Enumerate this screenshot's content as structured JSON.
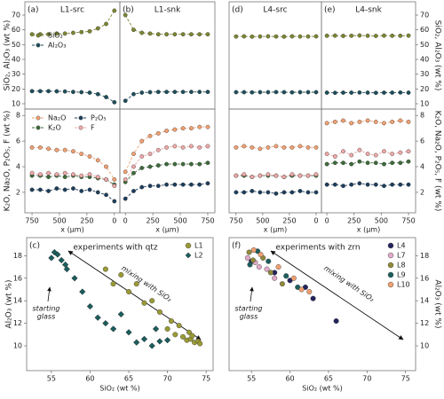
{
  "chart_data": [
    {
      "type": "line",
      "panel": "(a)",
      "title": "L1-src",
      "x": [
        750,
        675,
        600,
        525,
        450,
        375,
        300,
        225,
        150,
        75,
        0
      ],
      "xlim": [
        815,
        -50
      ],
      "xticks": [
        750,
        500,
        250,
        0
      ],
      "xlabel": "x (μm)",
      "legend": true,
      "upper": {
        "ylabel": "SiO₂, Al₂O₃ (wt %)",
        "ylim": [
          6.4,
          79
        ],
        "yticks": [
          10,
          20,
          30,
          40,
          50,
          60,
          70
        ],
        "yside": "left",
        "series": [
          {
            "name": "SiO₂",
            "color": "#7d8530",
            "values": [
              57,
              57,
              57,
              57.5,
              57.5,
              58,
              58.5,
              59,
              61,
              64,
              73
            ]
          },
          {
            "name": "Al₂O₃",
            "color": "#1d4e5c",
            "values": [
              18.5,
              18.5,
              18.5,
              18.4,
              18.3,
              18,
              17.8,
              17.5,
              16.5,
              14.5,
              11
            ]
          }
        ]
      },
      "lower": {
        "ylabel": "K₂O, Na₂O, P₂O₅, F (wt %)",
        "ylim": [
          0.4,
          8.5
        ],
        "yticks": [
          2,
          4,
          6,
          8
        ],
        "yside": "left",
        "series": [
          {
            "name": "Na₂O",
            "color": "#f4a070",
            "values": [
              5.5,
              5.5,
              5.4,
              5.3,
              5.3,
              5.2,
              5.0,
              4.8,
              4.5,
              4.0,
              3.0
            ]
          },
          {
            "name": "K₂O",
            "color": "#3d6b3a",
            "values": [
              3.3,
              3.3,
              3.2,
              3.3,
              3.2,
              3.3,
              3.2,
              3.2,
              3.1,
              3.0,
              2.6
            ]
          },
          {
            "name": "P₂O₅",
            "color": "#1b3d5c",
            "values": [
              2.2,
              2.2,
              2.1,
              2.3,
              2.2,
              2.3,
              2.1,
              2.2,
              2.0,
              1.8,
              1.3
            ]
          },
          {
            "name": "F",
            "color": "#f0a8a8",
            "values": [
              3.5,
              3.4,
              3.5,
              3.4,
              3.5,
              3.4,
              3.3,
              3.4,
              3.2,
              3.0,
              2.5
            ]
          }
        ]
      }
    },
    {
      "type": "line",
      "panel": "(b)",
      "title": "L1-snk",
      "x": [
        0,
        75,
        150,
        225,
        300,
        375,
        450,
        525,
        600,
        675,
        750
      ],
      "xlim": [
        -50,
        815
      ],
      "xticks": [
        0,
        250,
        500,
        750
      ],
      "xlabel": "x (μm)",
      "upper": {
        "ylim": [
          6.4,
          79
        ],
        "series": [
          {
            "name": "SiO₂",
            "color": "#7d8530",
            "values": [
              70,
              60,
              58,
              57.5,
              57,
              57,
              57,
              57,
              57,
              57,
              57
            ]
          },
          {
            "name": "Al₂O₃",
            "color": "#1d4e5c",
            "values": [
              12,
              16.5,
              17.5,
              17.8,
              18,
              18,
              18,
              18,
              18,
              18,
              18
            ]
          }
        ]
      },
      "lower": {
        "ylim": [
          0.4,
          8.5
        ],
        "series": [
          {
            "name": "Na₂O",
            "color": "#f4a070",
            "values": [
              3.6,
              5.0,
              6.0,
              6.4,
              6.6,
              6.8,
              6.9,
              7.0,
              7.0,
              7.1,
              7.1
            ]
          },
          {
            "name": "K₂O",
            "color": "#3d6b3a",
            "values": [
              2.8,
              3.5,
              3.9,
              4.0,
              4.1,
              4.2,
              4.2,
              4.2,
              4.2,
              4.2,
              4.3
            ]
          },
          {
            "name": "P₂O₅",
            "color": "#1b3d5c",
            "values": [
              1.5,
              2.1,
              2.4,
              2.5,
              2.5,
              2.6,
              2.6,
              2.6,
              2.6,
              2.6,
              2.7
            ]
          },
          {
            "name": "F",
            "color": "#f0a8a8",
            "values": [
              3.0,
              4.0,
              4.8,
              5.0,
              5.3,
              5.5,
              5.6,
              5.5,
              5.6,
              5.5,
              5.6
            ]
          }
        ]
      }
    },
    {
      "type": "line",
      "panel": "(d)",
      "title": "L4-src",
      "x": [
        750,
        675,
        600,
        525,
        450,
        375,
        300,
        225,
        150,
        75,
        0
      ],
      "xlim": [
        815,
        -50
      ],
      "xticks": [
        750,
        500,
        250,
        0
      ],
      "xlabel": "x (μm)",
      "upper": {
        "ylim": [
          6.4,
          79
        ],
        "series": [
          {
            "name": "SiO₂",
            "color": "#7d8530",
            "values": [
              55.5,
              55.6,
              55.4,
              55.5,
              55.6,
              55.5,
              55.4,
              55.6,
              55.5,
              55.5,
              55.6
            ]
          },
          {
            "name": "Al₂O₃",
            "color": "#1d4e5c",
            "values": [
              17.8,
              17.8,
              17.7,
              17.8,
              17.8,
              17.9,
              17.8,
              17.7,
              17.8,
              17.8,
              17.8
            ]
          }
        ]
      },
      "lower": {
        "ylim": [
          0.4,
          8.5
        ],
        "series": [
          {
            "name": "Na₂O",
            "color": "#f4a070",
            "values": [
              5.5,
              5.6,
              5.5,
              5.4,
              5.5,
              5.6,
              5.5,
              5.5,
              5.6,
              5.5,
              5.5
            ]
          },
          {
            "name": "K₂O",
            "color": "#3d6b3a",
            "values": [
              3.3,
              3.3,
              3.2,
              3.3,
              3.3,
              3.3,
              3.2,
              3.3,
              3.3,
              3.3,
              3.3
            ]
          },
          {
            "name": "P₂O₅",
            "color": "#1b3d5c",
            "values": [
              2.0,
              2.0,
              2.1,
              2.0,
              2.0,
              1.9,
              2.0,
              2.0,
              2.1,
              2.0,
              2.0
            ]
          },
          {
            "name": "F",
            "color": "#f0a8a8",
            "values": [
              3.3,
              3.4,
              3.2,
              3.3,
              3.4,
              3.3,
              3.2,
              3.4,
              3.3,
              3.3,
              3.4
            ]
          }
        ]
      }
    },
    {
      "type": "line",
      "panel": "(e)",
      "title": "L4-snk",
      "x": [
        0,
        75,
        150,
        225,
        300,
        375,
        450,
        525,
        600,
        675,
        750
      ],
      "xlim": [
        -50,
        815
      ],
      "xticks": [
        0,
        250,
        500,
        750
      ],
      "xlabel": "x (μm)",
      "upper": {
        "ylabel": "SiO₂, Al₂O₃ (wt %)",
        "ylim": [
          6.4,
          79
        ],
        "yticks": [
          10,
          20,
          30,
          40,
          50,
          60,
          70
        ],
        "yside": "right",
        "series": [
          {
            "name": "SiO₂",
            "color": "#7d8530",
            "values": [
              56,
              56.1,
              55.9,
              56,
              56.2,
              56,
              55.9,
              56.1,
              56,
              56,
              56.1
            ]
          },
          {
            "name": "Al₂O₃",
            "color": "#1d4e5c",
            "values": [
              17.5,
              17.4,
              17.5,
              17.5,
              17.6,
              17.5,
              17.4,
              17.5,
              17.5,
              17.6,
              17.5
            ]
          }
        ]
      },
      "lower": {
        "ylabel": "K₂O, Na₂O, P₂O₅, F (wt %)",
        "ylim": [
          0.4,
          8.5
        ],
        "yticks": [
          2,
          4,
          6,
          8
        ],
        "yside": "right",
        "series": [
          {
            "name": "Na₂O",
            "color": "#f4a070",
            "values": [
              7.4,
              7.5,
              7.6,
              7.4,
              7.5,
              7.6,
              7.5,
              7.4,
              7.5,
              7.6,
              7.5
            ]
          },
          {
            "name": "K₂O",
            "color": "#3d6b3a",
            "values": [
              4.2,
              4.3,
              4.3,
              4.2,
              4.4,
              4.3,
              4.3,
              4.2,
              4.3,
              4.3,
              4.4
            ]
          },
          {
            "name": "P₂O₅",
            "color": "#1b3d5c",
            "values": [
              2.6,
              2.6,
              2.5,
              2.6,
              2.7,
              2.6,
              2.6,
              2.5,
              2.6,
              2.6,
              2.6
            ]
          },
          {
            "name": "F",
            "color": "#f0a8a8",
            "values": [
              5.0,
              4.8,
              5.2,
              4.9,
              5.3,
              5.0,
              4.9,
              5.2,
              5.0,
              5.1,
              5.2
            ]
          }
        ]
      }
    },
    {
      "type": "scatter",
      "panel": "(c)",
      "annotations": [
        "experiments with qtz",
        "starting",
        "glass",
        "mixing with SiO₂"
      ],
      "xlabel": "SiO₂ (wt %)",
      "ylabel": "Al₂O₃ (wt %)",
      "xlim": [
        51.8,
        75.9
      ],
      "ylim": [
        7.8,
        19.6
      ],
      "xticks": [
        55,
        60,
        65,
        70,
        75
      ],
      "yticks": [
        10,
        12,
        14,
        16,
        18
      ],
      "yside": "left",
      "series": [
        {
          "name": "L1",
          "color": "#9a9a35",
          "marker": "circle",
          "x": [
            70,
            71,
            72,
            72.5,
            73,
            73.5,
            74,
            71.5,
            72.8,
            73.2,
            74.2,
            70.5,
            69,
            68,
            66,
            64,
            62,
            65,
            67,
            63
          ],
          "values": [
            11.5,
            11,
            10.8,
            10.5,
            10.6,
            10.3,
            10.4,
            11.8,
            11.2,
            10.9,
            10.2,
            12.2,
            13,
            14,
            15.5,
            16.3,
            16.8,
            14.8,
            13.8,
            15.5
          ]
        },
        {
          "name": "L2",
          "color": "#1c5e5e",
          "marker": "diamond",
          "x": [
            55,
            55.4,
            55.8,
            56.3,
            56.8,
            57,
            58,
            59,
            60,
            61,
            62,
            63,
            64,
            65,
            66,
            67,
            68,
            69,
            70,
            68.5
          ],
          "values": [
            17.8,
            18.3,
            18.1,
            17.6,
            17.2,
            16.8,
            16,
            14.8,
            13.5,
            12.5,
            12,
            11.5,
            12.8,
            11.2,
            10.3,
            10.6,
            10,
            10.4,
            10.5,
            11.5
          ]
        }
      ]
    },
    {
      "type": "scatter",
      "panel": "(f)",
      "annotations": [
        "experiments with zrn",
        "starting",
        "glass",
        "mixing with SiO₂"
      ],
      "xlabel": "SiO₂ (wt %)",
      "ylabel": "Al₂O₃ (wt %)",
      "xlim": [
        52.1,
        76.3
      ],
      "ylim": [
        7.8,
        19.6
      ],
      "xticks": [
        55,
        60,
        65,
        70,
        75
      ],
      "yticks": [
        10,
        12,
        14,
        16,
        18
      ],
      "yside": "right",
      "series": [
        {
          "name": "L4",
          "color": "#24245e",
          "marker": "circle",
          "x": [
            55,
            58,
            60,
            62,
            63,
            66
          ],
          "values": [
            17.5,
            16.5,
            15.8,
            15.2,
            14.2,
            12.2
          ]
        },
        {
          "name": "L7",
          "color": "#e0a8c8",
          "marker": "circle",
          "x": [
            54.5,
            55.5,
            56,
            57,
            58
          ],
          "values": [
            17.8,
            17.4,
            17,
            16.8,
            16
          ]
        },
        {
          "name": "L8",
          "color": "#8f8a3a",
          "marker": "circle",
          "x": [
            54.7,
            55.2,
            56.5,
            57.5,
            59
          ],
          "values": [
            18.3,
            17.6,
            17.8,
            16.5,
            15.5
          ]
        },
        {
          "name": "L9",
          "color": "#1c5e5e",
          "marker": "circle",
          "x": [
            54.8,
            55.8,
            57.2,
            59.5,
            61
          ],
          "values": [
            17.2,
            18.4,
            17.5,
            16.2,
            15.2
          ]
        },
        {
          "name": "L10",
          "color": "#f0a070",
          "marker": "circle",
          "x": [
            55.3,
            56.2,
            58.5,
            60.5,
            61.5,
            62.5
          ],
          "values": [
            18.5,
            18.1,
            17,
            16,
            15,
            14.8
          ]
        }
      ]
    }
  ]
}
